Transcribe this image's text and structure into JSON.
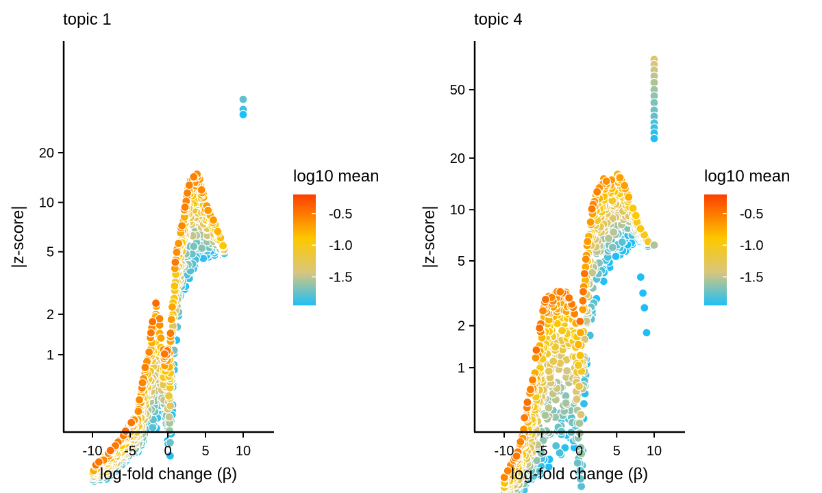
{
  "chart_data": [
    {
      "type": "scatter",
      "title": "topic 1",
      "xlabel": "log-fold change (β)",
      "ylabel": "|z-score|",
      "x_ticks": [
        -10,
        -5,
        0,
        5,
        10
      ],
      "x_tick_labels": [
        "-10",
        "-5",
        "0",
        "5",
        "10"
      ],
      "y_ticks": [
        1,
        2,
        5,
        10,
        20
      ],
      "y_tick_labels": [
        "1",
        "2",
        "5",
        "10",
        "20"
      ],
      "xlim": [
        -14,
        14
      ],
      "y_scale": "asinh",
      "color_legend": {
        "title": "log10 mean",
        "ticks": [
          -0.5,
          -1.0,
          -1.5
        ],
        "tick_labels": [
          "-0.5",
          "-1.0",
          "-1.5"
        ],
        "range": [
          -1.95,
          -0.2
        ],
        "colors": [
          "#1ebff8",
          "#d9c67c",
          "#fdc800",
          "#fd6a00"
        ]
      },
      "outliers": [
        {
          "x": 10,
          "y": 42,
          "c": -1.75
        },
        {
          "x": 10,
          "y": 36.5,
          "c": -1.85
        },
        {
          "x": 10,
          "y": 34,
          "c": -1.95
        }
      ],
      "envelope": [
        {
          "x": -10,
          "top": -0.75,
          "bottom": -1.0
        },
        {
          "x": -8,
          "top": -0.5,
          "bottom": -0.95
        },
        {
          "x": -6,
          "top": -0.25,
          "bottom": -0.7
        },
        {
          "x": -4,
          "top": 0.1,
          "bottom": -0.5
        },
        {
          "x": -2.5,
          "top": 1.2,
          "bottom": -0.3
        },
        {
          "x": -1.5,
          "top": 2.5,
          "bottom": -0.15
        },
        {
          "x": -0.5,
          "top": 1.0,
          "bottom": 0.0
        },
        {
          "x": 0.3,
          "top": 1.3,
          "bottom": -0.6
        },
        {
          "x": 1,
          "top": 4.5,
          "bottom": 1.0
        },
        {
          "x": 2,
          "top": 8.0,
          "bottom": 2.5
        },
        {
          "x": 3,
          "top": 14.0,
          "bottom": 3.5
        },
        {
          "x": 4,
          "top": 15.0,
          "bottom": 4.0
        },
        {
          "x": 5,
          "top": 10.0,
          "bottom": 4.5
        },
        {
          "x": 6,
          "top": 8.0,
          "bottom": 4.7
        },
        {
          "x": 7.5,
          "top": 5.2,
          "bottom": 4.8
        }
      ]
    },
    {
      "type": "scatter",
      "title": "topic 4",
      "xlabel": "log-fold change (β)",
      "ylabel": "|z-score|",
      "x_ticks": [
        -10,
        -5,
        0,
        5,
        10
      ],
      "x_tick_labels": [
        "-10",
        "-5",
        "0",
        "5",
        "10"
      ],
      "y_ticks": [
        1,
        2,
        5,
        10,
        20,
        50
      ],
      "y_tick_labels": [
        "1",
        "2",
        "5",
        "10",
        "20",
        "50"
      ],
      "xlim": [
        -14,
        14
      ],
      "y_scale": "asinh",
      "color_legend": {
        "title": "log10 mean",
        "ticks": [
          -0.5,
          -1.0,
          -1.5
        ],
        "tick_labels": [
          "-0.5",
          "-1.0",
          "-1.5"
        ],
        "range": [
          -1.95,
          -0.2
        ],
        "colors": [
          "#1ebff8",
          "#d9c67c",
          "#fdc800",
          "#fd6a00"
        ]
      },
      "outliers": [
        {
          "x": 10,
          "y": 75,
          "c": -1.3
        },
        {
          "x": 10,
          "y": 70,
          "c": -1.35
        },
        {
          "x": 10,
          "y": 65,
          "c": -1.4
        },
        {
          "x": 10,
          "y": 60,
          "c": -1.45
        },
        {
          "x": 10,
          "y": 55,
          "c": -1.5
        },
        {
          "x": 10,
          "y": 50,
          "c": -1.55
        },
        {
          "x": 10,
          "y": 46,
          "c": -1.6
        },
        {
          "x": 10,
          "y": 42,
          "c": -1.65
        },
        {
          "x": 10,
          "y": 38,
          "c": -1.7
        },
        {
          "x": 10,
          "y": 35,
          "c": -1.75
        },
        {
          "x": 10,
          "y": 32,
          "c": -1.8
        },
        {
          "x": 10,
          "y": 30,
          "c": -1.85
        },
        {
          "x": 10,
          "y": 28,
          "c": -1.9
        },
        {
          "x": 10,
          "y": 26,
          "c": -1.95
        },
        {
          "x": 8.2,
          "y": 4.0,
          "c": -1.95
        },
        {
          "x": 8.5,
          "y": 3.2,
          "c": -1.95
        },
        {
          "x": 8.7,
          "y": 2.6,
          "c": -1.95
        },
        {
          "x": 9.0,
          "y": 1.8,
          "c": -1.95
        },
        {
          "x": 10,
          "y": 6.2,
          "c": -1.5
        }
      ],
      "envelope": [
        {
          "x": -10,
          "top": -0.6,
          "bottom": -1.0
        },
        {
          "x": -8,
          "top": -0.2,
          "bottom": -0.95
        },
        {
          "x": -6,
          "top": 1.0,
          "bottom": -0.75
        },
        {
          "x": -4.5,
          "top": 3.0,
          "bottom": -0.55
        },
        {
          "x": -2.5,
          "top": 3.5,
          "bottom": -0.35
        },
        {
          "x": -1,
          "top": 3.0,
          "bottom": -0.1
        },
        {
          "x": 0.3,
          "top": 2.0,
          "bottom": -0.9
        },
        {
          "x": 1,
          "top": 6.0,
          "bottom": 1.0
        },
        {
          "x": 2,
          "top": 12.0,
          "bottom": 2.5
        },
        {
          "x": 3,
          "top": 15.0,
          "bottom": 3.5
        },
        {
          "x": 4,
          "top": 16.0,
          "bottom": 4.5
        },
        {
          "x": 5,
          "top": 16.5,
          "bottom": 5.0
        },
        {
          "x": 6,
          "top": 14.0,
          "bottom": 5.5
        },
        {
          "x": 7,
          "top": 11.0,
          "bottom": 6.0
        },
        {
          "x": 8,
          "top": 8.0,
          "bottom": 6.5
        },
        {
          "x": 9.2,
          "top": 6.5,
          "bottom": 6.0
        }
      ]
    }
  ]
}
